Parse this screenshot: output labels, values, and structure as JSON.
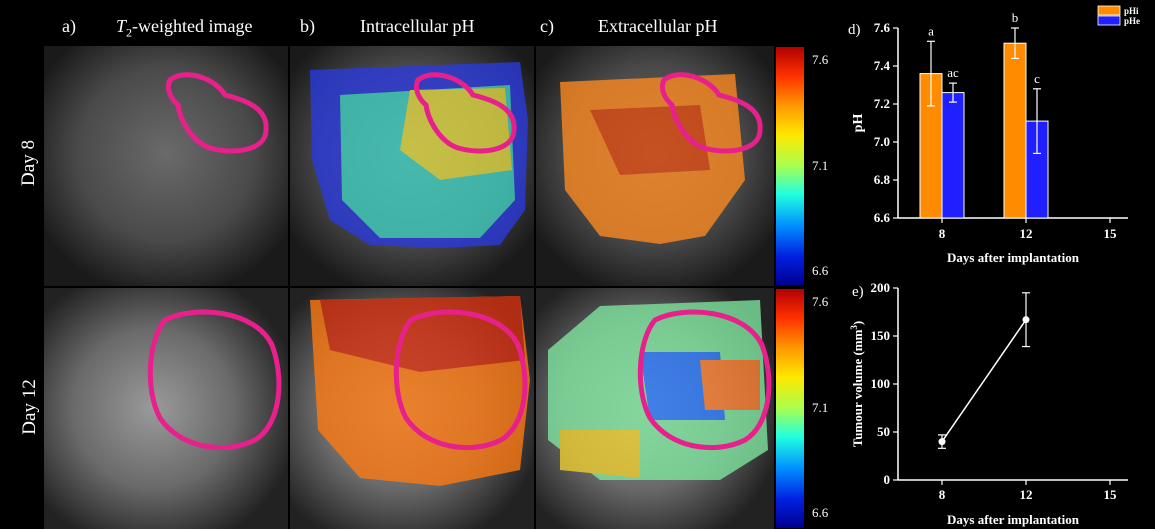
{
  "headers": {
    "a_letter": "a)",
    "a_T": "T",
    "a_sub": "2",
    "a_rest": "-weighted image",
    "b": "b)",
    "b_title": "Intracellular pH",
    "c": "c)",
    "c_title": "Extracellular pH"
  },
  "rows": [
    "Day 8",
    "Day 12"
  ],
  "colorbar": {
    "ticks": [
      "7.6",
      "7.1",
      "6.6"
    ],
    "colors": [
      "#b00000",
      "#ff3000",
      "#ff9a00",
      "#ffe800",
      "#a8ff50",
      "#20ffe0",
      "#0090ff",
      "#0020e0",
      "#000090"
    ]
  },
  "accent": {
    "roi": "#e8208c",
    "phi": "#ff8c00",
    "phe": "#1f1fff"
  },
  "chart_data": [
    {
      "type": "bar",
      "panel_label": "d)",
      "categories": [
        "8",
        "12",
        "15"
      ],
      "series": [
        {
          "name": "pHi",
          "values": [
            7.36,
            7.52,
            null
          ],
          "errors": [
            0.17,
            0.08,
            null
          ],
          "letters": [
            "a",
            "b",
            null
          ]
        },
        {
          "name": "pHe",
          "values": [
            7.26,
            7.11,
            null
          ],
          "errors": [
            0.05,
            0.17,
            null
          ],
          "letters": [
            "ac",
            "c",
            null
          ]
        }
      ],
      "xlabel": "Days after implantation",
      "ylabel": "pH",
      "ylim": [
        6.6,
        7.6
      ],
      "yticks": [
        "6.6",
        "6.8",
        "7.0",
        "7.2",
        "7.4",
        "7.6"
      ],
      "legend": "top-right",
      "grid": false
    },
    {
      "type": "line",
      "panel_label": "e)",
      "x": [
        "8",
        "12",
        "15"
      ],
      "series": [
        {
          "values": [
            40,
            167,
            null
          ],
          "errors": [
            7,
            28,
            null
          ]
        }
      ],
      "xlabel": "Days after implantation",
      "ylabel": "Tumour volume (mm",
      "ylabel_sup": "3",
      "ylabel_end": ")",
      "ylim": [
        0,
        200
      ],
      "yticks": [
        "0",
        "50",
        "100",
        "150",
        "200"
      ],
      "grid": false
    }
  ]
}
